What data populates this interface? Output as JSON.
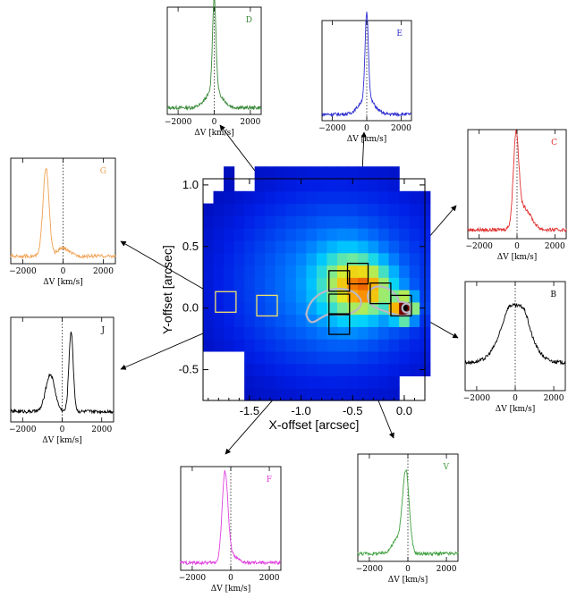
{
  "chart_data": {
    "main_map": {
      "type": "heatmap",
      "xlabel": "X-offset [arcsec]",
      "ylabel": "Y-offset [arcsec]",
      "xlim": [
        -1.95,
        0.2
      ],
      "ylim": [
        -0.75,
        1.05
      ],
      "xticks": [
        -1.5,
        -1.0,
        -0.5,
        0.0
      ],
      "xtick_labels": [
        "-1.5",
        "-1.0",
        "-0.5",
        "0.0"
      ],
      "yticks": [
        -0.5,
        0.0,
        0.5,
        1.0
      ],
      "ytick_labels": [
        "-0.5",
        "0.0",
        "0.5",
        "1.0"
      ],
      "peak": [
        0.0,
        0.0
      ],
      "boxes": [
        {
          "label": "G",
          "center": [
            -1.73,
            0.05
          ],
          "color": "#f4e26a"
        },
        {
          "label": "J",
          "center": [
            -1.33,
            0.02
          ],
          "color": "#f4e26a"
        },
        {
          "label": "D",
          "center": [
            -0.63,
            0.22
          ],
          "color": "#000000"
        },
        {
          "label": "E",
          "center": [
            -0.45,
            0.28
          ],
          "color": "#000000"
        },
        {
          "label": "C",
          "center": [
            -0.23,
            0.12
          ],
          "color": "#000000"
        },
        {
          "label": "B",
          "center": [
            -0.03,
            0.02
          ],
          "color": "#000000"
        },
        {
          "label": "F",
          "center": [
            -0.63,
            -0.13
          ],
          "color": "#000000"
        },
        {
          "label": "V",
          "center": [
            -0.63,
            0.03
          ],
          "color": "#000000"
        }
      ]
    },
    "spectra": [
      {
        "label": "D",
        "color": "#3a8a3a",
        "type": "line",
        "xlabel": "ΔV [km/s]",
        "xlim": [
          -2600,
          2600
        ],
        "xticks": [
          -2000,
          0,
          2000
        ],
        "xtick_labels": [
          "−2000",
          "0",
          "2000"
        ],
        "profile": "single-narrow-peak",
        "peak_velocity": 0
      },
      {
        "label": "E",
        "color": "#3030d0",
        "type": "line",
        "xlabel": "ΔV [km/s]",
        "xlim": [
          -2600,
          2600
        ],
        "xticks": [
          -2000,
          0,
          2000
        ],
        "xtick_labels": [
          "−2000",
          "0",
          "2000"
        ],
        "profile": "single-narrow-peak",
        "peak_velocity": 0
      },
      {
        "label": "C",
        "color": "#e03030",
        "type": "line",
        "xlabel": "ΔV [km/s]",
        "xlim": [
          -2600,
          2600
        ],
        "xticks": [
          -2000,
          0,
          2000
        ],
        "xtick_labels": [
          "−2000",
          "0",
          "2000"
        ],
        "profile": "single-peak-red-wing",
        "peak_velocity": -50
      },
      {
        "label": "B",
        "color": "#000000",
        "type": "line",
        "xlabel": "ΔV [km/s]",
        "xlim": [
          -2600,
          2600
        ],
        "xticks": [
          -2000,
          0,
          2000
        ],
        "xtick_labels": [
          "−2000",
          "0",
          "2000"
        ],
        "profile": "broad",
        "peak_velocity": 0
      },
      {
        "label": "G",
        "color": "#f0a050",
        "type": "line",
        "xlabel": "ΔV [km/s]",
        "xlim": [
          -2600,
          2600
        ],
        "xticks": [
          -2000,
          0,
          2000
        ],
        "xtick_labels": [
          "−2000",
          "0",
          "2000"
        ],
        "profile": "blueshifted-peak",
        "peak_velocity": -850
      },
      {
        "label": "J",
        "color": "#000000",
        "type": "line",
        "xlabel": "ΔV [km/s]",
        "xlim": [
          -2600,
          2600
        ],
        "xticks": [
          -2000,
          0,
          2000
        ],
        "xtick_labels": [
          "−2000",
          "0",
          "2000"
        ],
        "profile": "double-peak",
        "peak_velocity": 450
      },
      {
        "label": "F",
        "color": "#e040e0",
        "type": "line",
        "xlabel": "ΔV [km/s]",
        "xlim": [
          -2600,
          2600
        ],
        "xticks": [
          -2000,
          0,
          2000
        ],
        "xtick_labels": [
          "−2000",
          "0",
          "2000"
        ],
        "profile": "blueshifted-peak",
        "peak_velocity": -300
      },
      {
        "label": "V",
        "color": "#40a040",
        "type": "line",
        "xlabel": "ΔV [km/s]",
        "xlim": [
          -2600,
          2600
        ],
        "xticks": [
          -2000,
          0,
          2000
        ],
        "xtick_labels": [
          "−2000",
          "0",
          "2000"
        ],
        "profile": "single-peak",
        "peak_velocity": -100
      }
    ]
  }
}
